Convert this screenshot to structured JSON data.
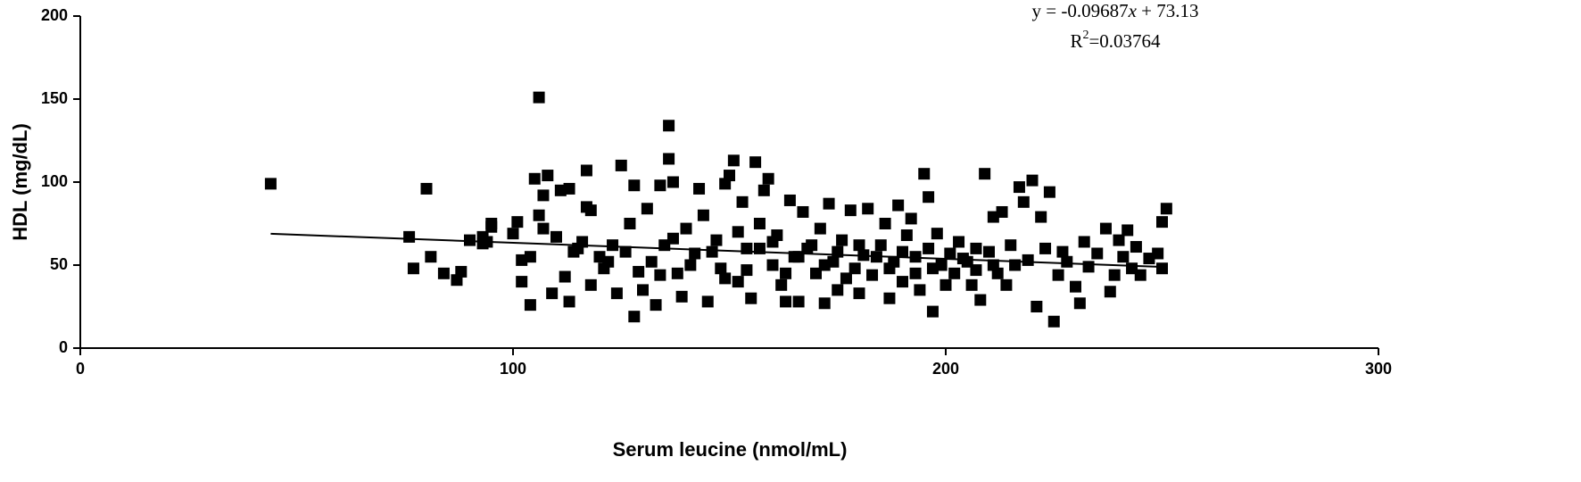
{
  "chart_data": {
    "type": "scatter",
    "x_label": "Serum leucine (nmol/mL)",
    "y_label": "HDL (mg/dL)",
    "equation_parts": [
      "y = -0.09687",
      "x",
      " + 73.13"
    ],
    "r2_parts": [
      "R",
      "2",
      "=0.03764"
    ],
    "xlim": [
      0,
      300
    ],
    "xticks": [
      0,
      100,
      200,
      300
    ],
    "ylim": [
      0,
      200
    ],
    "yticks": [
      0,
      50,
      100,
      150,
      200
    ],
    "trendline": {
      "x": [
        44,
        250
      ],
      "values": [
        68.87,
        48.91
      ],
      "color": "#000000"
    },
    "series": [
      {
        "color": "#000000",
        "x": [
          44,
          76,
          77,
          80,
          81,
          84,
          87,
          88,
          90,
          93,
          93,
          94,
          95,
          95,
          100,
          101,
          102,
          102,
          104,
          104,
          105,
          106,
          106,
          107,
          107,
          108,
          109,
          110,
          111,
          112,
          113,
          113,
          114,
          116,
          117,
          117,
          118,
          118,
          120,
          122,
          124,
          125,
          127,
          128,
          128,
          129,
          130,
          131,
          133,
          134,
          135,
          136,
          136,
          137,
          138,
          139,
          140,
          142,
          143,
          144,
          145,
          147,
          148,
          149,
          150,
          151,
          152,
          153,
          154,
          155,
          156,
          157,
          158,
          159,
          160,
          161,
          162,
          163,
          164,
          165,
          166,
          167,
          168,
          170,
          171,
          172,
          173,
          174,
          175,
          176,
          178,
          179,
          180,
          181,
          182,
          183,
          185,
          186,
          187,
          188,
          189,
          190,
          191,
          192,
          193,
          194,
          195,
          196,
          197,
          197,
          198,
          200,
          201,
          202,
          203,
          205,
          206,
          207,
          208,
          209,
          210,
          211,
          212,
          213,
          214,
          215,
          216,
          217,
          218,
          219,
          220,
          221,
          222,
          223,
          224,
          225,
          226,
          227,
          228,
          230,
          231,
          232,
          233,
          235,
          237,
          238,
          239,
          240,
          241,
          242,
          243,
          244,
          245,
          247,
          249,
          250,
          251,
          250,
          115,
          121,
          123,
          126,
          132,
          134,
          137,
          141,
          146,
          149,
          152,
          154,
          157,
          160,
          163,
          166,
          169,
          172,
          175,
          177,
          180,
          184,
          187,
          190,
          193,
          196,
          199,
          204,
          207,
          211
        ],
        "values": [
          99,
          67,
          48,
          96,
          55,
          45,
          41,
          46,
          65,
          67,
          63,
          64,
          75,
          73,
          69,
          76,
          40,
          53,
          26,
          55,
          102,
          151,
          80,
          72,
          92,
          104,
          33,
          67,
          95,
          43,
          28,
          96,
          58,
          64,
          107,
          85,
          38,
          83,
          55,
          52,
          33,
          110,
          75,
          19,
          98,
          46,
          35,
          84,
          26,
          98,
          62,
          134,
          114,
          100,
          45,
          31,
          72,
          57,
          96,
          80,
          28,
          65,
          48,
          99,
          104,
          113,
          40,
          88,
          60,
          30,
          112,
          75,
          95,
          102,
          50,
          68,
          38,
          28,
          89,
          55,
          28,
          82,
          60,
          45,
          72,
          27,
          87,
          52,
          35,
          65,
          83,
          48,
          33,
          56,
          84,
          44,
          62,
          75,
          30,
          52,
          86,
          40,
          68,
          78,
          55,
          35,
          105,
          91,
          48,
          22,
          69,
          38,
          57,
          45,
          64,
          52,
          38,
          47,
          29,
          105,
          58,
          79,
          45,
          82,
          38,
          62,
          50,
          97,
          88,
          53,
          101,
          25,
          79,
          60,
          94,
          16,
          44,
          58,
          52,
          37,
          27,
          64,
          49,
          57,
          72,
          34,
          44,
          65,
          55,
          71,
          48,
          61,
          44,
          54,
          57,
          76,
          84,
          48,
          60,
          48,
          62,
          58,
          52,
          44,
          66,
          50,
          58,
          42,
          70,
          47,
          60,
          64,
          45,
          55,
          62,
          50,
          58,
          42,
          62,
          55,
          48,
          58,
          45,
          60,
          50,
          54,
          60,
          50
        ]
      }
    ]
  }
}
